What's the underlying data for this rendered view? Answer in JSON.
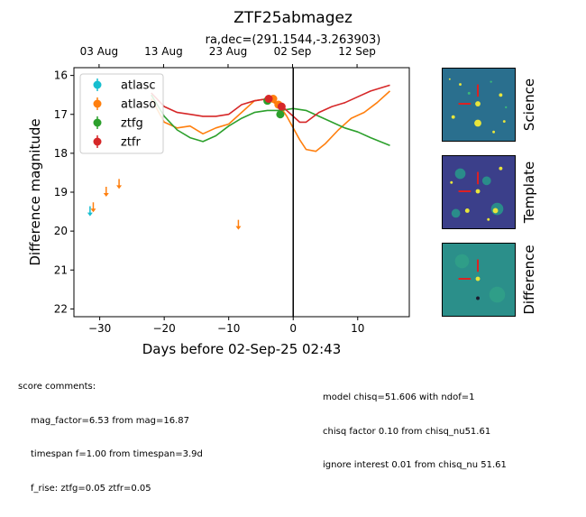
{
  "chart_data": {
    "type": "scatter",
    "title": "ZTF25abmagez",
    "subtitle": "ra,dec=(291.1544,-3.263903)",
    "xlabel": "Days before 02-Sep-25 02:43",
    "ylabel": "Difference magnitude",
    "xlim": [
      -34,
      18
    ],
    "ylim": [
      22.2,
      15.8
    ],
    "x_ticks": [
      -30,
      -20,
      -10,
      0,
      10
    ],
    "y_ticks": [
      16,
      17,
      18,
      19,
      20,
      21,
      22
    ],
    "top_axis_ticks": [
      {
        "x": -30.1,
        "label": "03 Aug"
      },
      {
        "x": -20.1,
        "label": "13 Aug"
      },
      {
        "x": -10.1,
        "label": "23 Aug"
      },
      {
        "x": -0.1,
        "label": "02 Sep"
      },
      {
        "x": 9.9,
        "label": "12 Sep"
      }
    ],
    "reference_line_x": 0,
    "legend_position": "upper-left",
    "series": [
      {
        "name": "atlasc",
        "color": "#17becf",
        "detections": [],
        "upper_limits": [
          {
            "x": -31.5,
            "y": 19.5
          }
        ],
        "model": []
      },
      {
        "name": "atlaso",
        "color": "#ff7f0e",
        "detections": [
          {
            "x": -3.1,
            "y": 16.6
          },
          {
            "x": -2.3,
            "y": 16.75
          }
        ],
        "upper_limits": [
          {
            "x": -31.0,
            "y": 19.4
          },
          {
            "x": -29.0,
            "y": 19.0
          },
          {
            "x": -27.0,
            "y": 18.8
          },
          {
            "x": -8.5,
            "y": 19.85
          }
        ],
        "model": [
          [
            -22,
            16.6
          ],
          [
            -20,
            17.2
          ],
          [
            -18,
            17.35
          ],
          [
            -16,
            17.3
          ],
          [
            -14,
            17.5
          ],
          [
            -12,
            17.35
          ],
          [
            -10,
            17.25
          ],
          [
            -8,
            16.95
          ],
          [
            -6,
            16.65
          ],
          [
            -4,
            16.6
          ],
          [
            -2,
            16.8
          ],
          [
            -1,
            17.05
          ],
          [
            0,
            17.35
          ],
          [
            1,
            17.65
          ],
          [
            2,
            17.9
          ],
          [
            3.5,
            17.95
          ],
          [
            5,
            17.75
          ],
          [
            7,
            17.4
          ],
          [
            9,
            17.1
          ],
          [
            11,
            16.95
          ],
          [
            13,
            16.7
          ],
          [
            15,
            16.4
          ]
        ]
      },
      {
        "name": "ztfg",
        "color": "#2ca02c",
        "detections": [
          {
            "x": -4.0,
            "y": 16.65
          },
          {
            "x": -2.0,
            "y": 17.0
          }
        ],
        "upper_limits": [],
        "model": [
          [
            -22,
            16.5
          ],
          [
            -20,
            17.05
          ],
          [
            -18,
            17.4
          ],
          [
            -16,
            17.6
          ],
          [
            -14,
            17.7
          ],
          [
            -12,
            17.55
          ],
          [
            -10,
            17.3
          ],
          [
            -8,
            17.1
          ],
          [
            -6,
            16.95
          ],
          [
            -4,
            16.9
          ],
          [
            -2,
            16.9
          ],
          [
            0,
            16.85
          ],
          [
            2,
            16.9
          ],
          [
            4,
            17.05
          ],
          [
            6,
            17.2
          ],
          [
            8,
            17.35
          ],
          [
            10,
            17.45
          ],
          [
            12,
            17.6
          ],
          [
            15,
            17.8
          ]
        ]
      },
      {
        "name": "ztfr",
        "color": "#d62728",
        "detections": [
          {
            "x": -3.8,
            "y": 16.6
          },
          {
            "x": -1.8,
            "y": 16.8
          }
        ],
        "upper_limits": [],
        "model": [
          [
            -22,
            16.45
          ],
          [
            -20,
            16.8
          ],
          [
            -18,
            16.95
          ],
          [
            -16,
            17.0
          ],
          [
            -14,
            17.05
          ],
          [
            -12,
            17.05
          ],
          [
            -10,
            17.0
          ],
          [
            -8,
            16.75
          ],
          [
            -6,
            16.65
          ],
          [
            -4,
            16.6
          ],
          [
            -2,
            16.75
          ],
          [
            0,
            17.05
          ],
          [
            1,
            17.2
          ],
          [
            2,
            17.2
          ],
          [
            4,
            16.95
          ],
          [
            6,
            16.8
          ],
          [
            8,
            16.7
          ],
          [
            10,
            16.55
          ],
          [
            12,
            16.4
          ],
          [
            15,
            16.25
          ]
        ]
      }
    ]
  },
  "cutouts": [
    {
      "label": "Science"
    },
    {
      "label": "Template"
    },
    {
      "label": "Difference"
    }
  ],
  "comments_left": {
    "header": "score comments:",
    "lines": [
      "mag_factor=6.53 from mag=16.87",
      "timespan f=1.00 from timespan=3.9d",
      "f_rise: ztfg=0.05 ztfr=0.05"
    ]
  },
  "comments_right": {
    "lines": [
      "model chisq=51.606 with ndof=1",
      "chisq factor 0.10 from chisq_nu51.61",
      "ignore interest 0.01 from chisq_nu 51.61"
    ]
  }
}
